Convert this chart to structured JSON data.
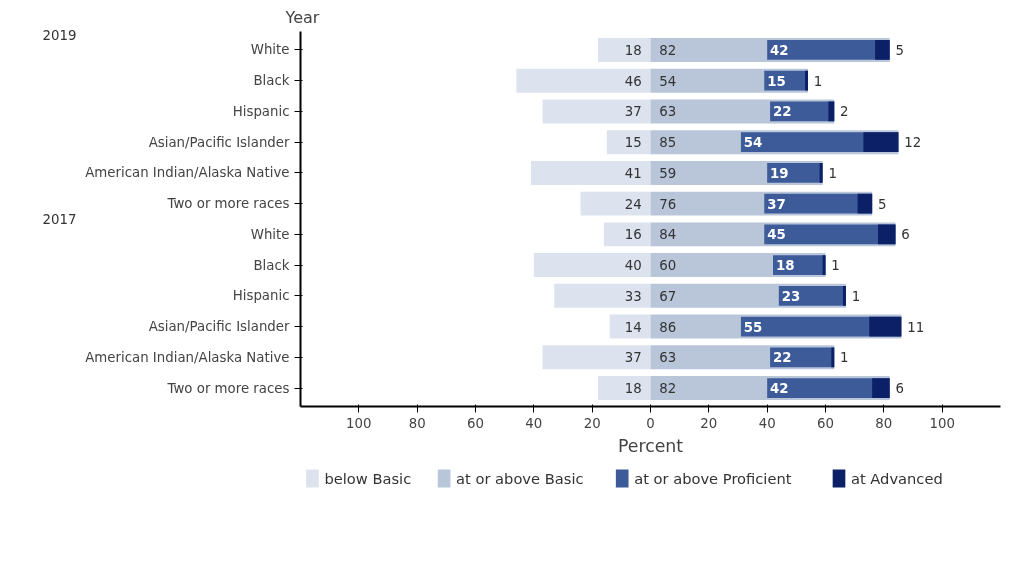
{
  "chart_data": {
    "type": "bar",
    "orientation": "horizontal",
    "ylabel": "Year",
    "xlabel": "Percent",
    "annotations": [
      "2019",
      "2017"
    ],
    "categories": [
      "White",
      "Black",
      "Hispanic",
      "Asian/Pacific Islander",
      "American Indian/Alaska Native",
      "Two or more races",
      "White",
      "Black",
      "Hispanic",
      "Asian/Pacific Islander",
      "American Indian/Alaska Native",
      "Two or more races"
    ],
    "xlim": [
      -120,
      120
    ],
    "xticks": [
      {
        "value": -100,
        "label": "100"
      },
      {
        "value": -80,
        "label": "80"
      },
      {
        "value": -60,
        "label": "60"
      },
      {
        "value": -40,
        "label": "40"
      },
      {
        "value": -20,
        "label": "20"
      },
      0,
      20,
      40,
      60,
      80,
      100
    ],
    "series": [
      {
        "name": "below Basic",
        "color": "#dde3ee",
        "values": [
          18,
          46,
          37,
          15,
          41,
          24,
          16,
          40,
          33,
          14,
          37,
          18
        ],
        "base": [
          -18,
          -46,
          -37,
          -15,
          -41,
          -24,
          -16,
          -40,
          -33,
          -14,
          -37,
          -18
        ],
        "value_labels": [
          "18",
          "46",
          "37",
          "15",
          "41",
          "24",
          "16",
          "40",
          "33",
          "14",
          "37",
          "18"
        ]
      },
      {
        "name": "at or above Basic",
        "color": "#b9c6da",
        "values": [
          82,
          54,
          63,
          85,
          59,
          76,
          84,
          60,
          67,
          86,
          63,
          82
        ],
        "value_labels": [
          "82",
          "54",
          "63",
          "85",
          "59",
          "76",
          "84",
          "60",
          "67",
          "86",
          "63",
          "82"
        ]
      },
      {
        "name": "at or above Proficient",
        "color": "#3d5b99",
        "values": [
          42,
          15,
          22,
          54,
          19,
          37,
          45,
          18,
          23,
          55,
          22,
          42
        ],
        "base": [
          40,
          39,
          41,
          31,
          40,
          39,
          39,
          42,
          44,
          31,
          41,
          40
        ],
        "value_labels": [
          "42",
          "15",
          "22",
          "54",
          "19",
          "37",
          "45",
          "18",
          "23",
          "55",
          "22",
          "42"
        ]
      },
      {
        "name": "at Advanced",
        "color": "#0b2066",
        "values": [
          5,
          1,
          2,
          12,
          1,
          5,
          6,
          1,
          1,
          11,
          1,
          6
        ],
        "base": [
          77,
          53,
          61,
          73,
          58,
          71,
          78,
          59,
          66,
          75,
          62,
          76
        ],
        "value_labels": [
          "5",
          "1",
          "2",
          "12",
          "1",
          "5",
          "6",
          "1",
          "1",
          "11",
          "1",
          "6"
        ]
      }
    ],
    "legend": "bottom",
    "grid": false
  }
}
